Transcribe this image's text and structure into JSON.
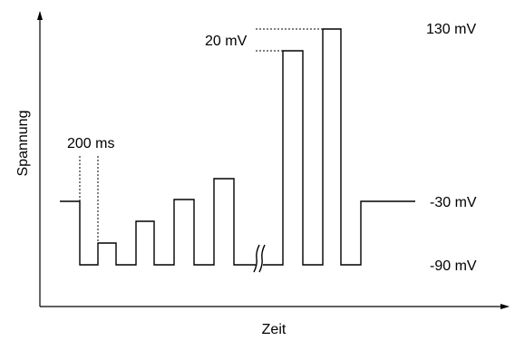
{
  "axes": {
    "ylabel": "Spannung",
    "xlabel": "Zeit"
  },
  "annotations": {
    "duration": "200 ms",
    "step": "20 mV"
  },
  "levels": {
    "top": "130 mV",
    "hold": "-30 mV",
    "bottom": "-90 mV"
  }
}
